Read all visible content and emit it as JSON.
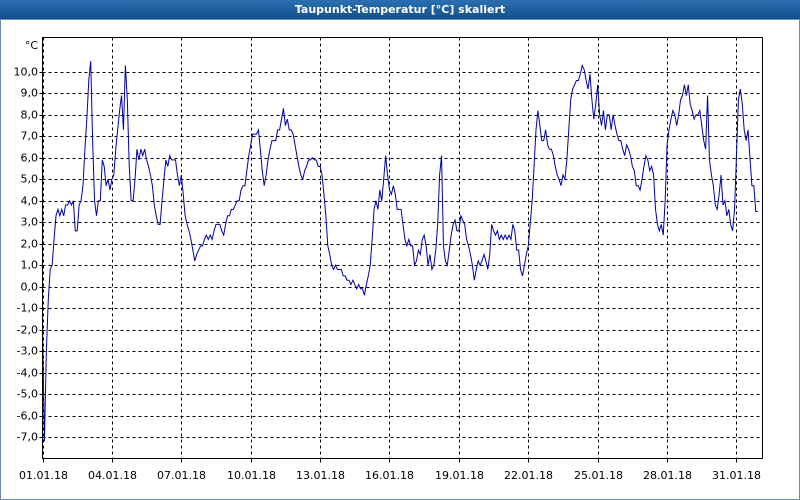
{
  "chart_data": {
    "type": "line",
    "title": "Taupunkt-Temperatur [°C] skaliert",
    "y_unit": "°C",
    "xlim": [
      0,
      747
    ],
    "ylim": [
      -8,
      11.6
    ],
    "grid": true,
    "xticks": [
      {
        "value": 0,
        "label": "01.01.18"
      },
      {
        "value": 72,
        "label": "04.01.18"
      },
      {
        "value": 144,
        "label": "07.01.18"
      },
      {
        "value": 216,
        "label": "10.01.18"
      },
      {
        "value": 288,
        "label": "13.01.18"
      },
      {
        "value": 360,
        "label": "16.01.18"
      },
      {
        "value": 432,
        "label": "19.01.18"
      },
      {
        "value": 504,
        "label": "22.01.18"
      },
      {
        "value": 576,
        "label": "25.01.18"
      },
      {
        "value": 648,
        "label": "28.01.18"
      },
      {
        "value": 720,
        "label": "31.01.18"
      }
    ],
    "yticks": [
      {
        "value": -7,
        "label": "-7,0"
      },
      {
        "value": -6,
        "label": "-6,0"
      },
      {
        "value": -5,
        "label": "-5,0"
      },
      {
        "value": -4,
        "label": "-4,0"
      },
      {
        "value": -3,
        "label": "-3,0"
      },
      {
        "value": -2,
        "label": "-2,0"
      },
      {
        "value": -1,
        "label": "-1,0"
      },
      {
        "value": 0,
        "label": "0,0"
      },
      {
        "value": 1,
        "label": "1,0"
      },
      {
        "value": 2,
        "label": "2,0"
      },
      {
        "value": 3,
        "label": "3,0"
      },
      {
        "value": 4,
        "label": "4,0"
      },
      {
        "value": 5,
        "label": "5,0"
      },
      {
        "value": 6,
        "label": "6,0"
      },
      {
        "value": 7,
        "label": "7,0"
      },
      {
        "value": 8,
        "label": "8,0"
      },
      {
        "value": 9,
        "label": "9,0"
      },
      {
        "value": 10,
        "label": "10,0"
      }
    ],
    "x": [
      0,
      2,
      4,
      6,
      8,
      10,
      12,
      14,
      16,
      18,
      20,
      22,
      24,
      26,
      28,
      30,
      32,
      34,
      36,
      38,
      40,
      42,
      44,
      46,
      48,
      50,
      52,
      54,
      56,
      58,
      60,
      62,
      64,
      66,
      68,
      70,
      72,
      74,
      76,
      78,
      80,
      82,
      84,
      86,
      88,
      90,
      92,
      94,
      96,
      98,
      100,
      102,
      104,
      106,
      108,
      110,
      112,
      114,
      116,
      118,
      120,
      122,
      124,
      126,
      128,
      130,
      132,
      134,
      136,
      138,
      140,
      142,
      144,
      146,
      148,
      150,
      152,
      154,
      156,
      158,
      160,
      162,
      164,
      166,
      168,
      170,
      172,
      174,
      176,
      178,
      180,
      182,
      184,
      186,
      188,
      190,
      192,
      194,
      196,
      198,
      200,
      202,
      204,
      206,
      208,
      210,
      212,
      214,
      216,
      218,
      220,
      222,
      224,
      226,
      228,
      230,
      232,
      234,
      236,
      238,
      240,
      242,
      244,
      246,
      248,
      250,
      252,
      254,
      256,
      258,
      260,
      262,
      264,
      266,
      268,
      270,
      272,
      274,
      276,
      278,
      280,
      282,
      284,
      286,
      288,
      290,
      292,
      294,
      296,
      298,
      300,
      302,
      304,
      306,
      308,
      310,
      312,
      314,
      316,
      318,
      320,
      322,
      324,
      326,
      328,
      330,
      332,
      334,
      336,
      338,
      340,
      342,
      344,
      346,
      348,
      350,
      352,
      354,
      356,
      358,
      360,
      362,
      364,
      366,
      368,
      370,
      372,
      374,
      376,
      378,
      380,
      382,
      384,
      386,
      388,
      390,
      392,
      394,
      396,
      398,
      400,
      402,
      404,
      406,
      408,
      410,
      412,
      414,
      416,
      418,
      420,
      422,
      424,
      426,
      428,
      430,
      432,
      434,
      436,
      438,
      440,
      442,
      444,
      446,
      448,
      450,
      452,
      454,
      456,
      458,
      460,
      462,
      464,
      466,
      468,
      470,
      472,
      474,
      476,
      478,
      480,
      482,
      484,
      486,
      488,
      490,
      492,
      494,
      496,
      498,
      500,
      502,
      504,
      506,
      508,
      510,
      512,
      514,
      516,
      518,
      520,
      522,
      524,
      526,
      528,
      530,
      532,
      534,
      536,
      538,
      540,
      542,
      544,
      546,
      548,
      550,
      552,
      554,
      556,
      558,
      560,
      562,
      564,
      566,
      568,
      570,
      572,
      574,
      576,
      578,
      580,
      582,
      584,
      586,
      588,
      590,
      592,
      594,
      596,
      598,
      600,
      602,
      604,
      606,
      608,
      610,
      612,
      614,
      616,
      618,
      620,
      622,
      624,
      626,
      628,
      630,
      632,
      634,
      636,
      638,
      640,
      642,
      644,
      646,
      648,
      650,
      652,
      654,
      656,
      658,
      660,
      662,
      664,
      666,
      668,
      670,
      672,
      674,
      676,
      678,
      680,
      682,
      684,
      686,
      688,
      690,
      692,
      694,
      696,
      698,
      700,
      702,
      704,
      706,
      708,
      710,
      712,
      714,
      716,
      718,
      720,
      722,
      724,
      726,
      728,
      730,
      732,
      734,
      736,
      738,
      740,
      742
    ],
    "series": [
      {
        "color": "#0000a8",
        "values": [
          -2.0,
          -7.2,
          -3.0,
          -0.6,
          0.8,
          1.0,
          2.2,
          3.3,
          3.6,
          3.3,
          3.6,
          3.3,
          3.8,
          3.8,
          4.0,
          3.8,
          4.0,
          2.6,
          2.6,
          3.8,
          4.0,
          4.7,
          6.4,
          7.8,
          9.6,
          10.5,
          6.8,
          4.0,
          3.3,
          4.0,
          4.0,
          5.9,
          5.6,
          4.7,
          5.0,
          4.5,
          5.0,
          5.2,
          6.4,
          7.3,
          8.2,
          8.9,
          7.3,
          10.3,
          8.7,
          5.6,
          4.0,
          4.0,
          5.0,
          6.4,
          5.9,
          6.4,
          6.1,
          6.4,
          5.9,
          5.6,
          5.2,
          4.7,
          3.8,
          3.3,
          2.9,
          2.9,
          4.0,
          5.0,
          5.9,
          5.6,
          6.1,
          5.9,
          5.9,
          5.9,
          5.2,
          4.7,
          5.2,
          4.3,
          3.3,
          2.9,
          2.6,
          2.2,
          1.7,
          1.2,
          1.5,
          1.7,
          1.9,
          1.9,
          2.2,
          2.4,
          2.2,
          2.4,
          2.2,
          2.6,
          2.9,
          2.9,
          2.9,
          2.6,
          2.4,
          2.9,
          3.3,
          3.3,
          3.6,
          3.6,
          3.8,
          4.0,
          4.0,
          4.5,
          4.7,
          4.7,
          5.4,
          6.1,
          6.6,
          7.1,
          7.1,
          7.1,
          7.3,
          6.4,
          5.4,
          4.7,
          5.2,
          5.9,
          6.4,
          6.8,
          6.8,
          6.8,
          7.3,
          7.3,
          7.8,
          8.3,
          7.5,
          7.8,
          7.3,
          7.3,
          7.1,
          6.6,
          6.1,
          5.6,
          5.2,
          5.0,
          5.4,
          5.6,
          5.9,
          5.9,
          6.0,
          5.9,
          5.9,
          5.6,
          5.6,
          5.2,
          4.3,
          3.3,
          1.9,
          1.5,
          1.0,
          0.8,
          1.0,
          0.8,
          0.8,
          0.8,
          0.5,
          0.5,
          0.3,
          0.3,
          0.1,
          0.3,
          0.1,
          -0.1,
          0.1,
          -0.1,
          -0.1,
          -0.4,
          0.1,
          0.5,
          1.0,
          2.2,
          3.6,
          4.0,
          3.6,
          4.5,
          4.0,
          5.0,
          6.1,
          5.2,
          4.5,
          4.3,
          4.7,
          4.3,
          3.6,
          3.6,
          3.6,
          2.9,
          2.2,
          1.9,
          2.2,
          1.9,
          1.9,
          1.0,
          1.2,
          1.7,
          1.5,
          2.2,
          2.4,
          1.9,
          1.0,
          1.5,
          0.8,
          1.0,
          1.7,
          2.9,
          5.2,
          6.1,
          1.9,
          1.2,
          1.0,
          1.7,
          2.4,
          2.9,
          3.1,
          2.6,
          2.6,
          3.3,
          3.1,
          2.9,
          2.2,
          1.9,
          1.5,
          1.0,
          0.3,
          0.8,
          1.2,
          1.0,
          1.2,
          1.5,
          1.2,
          0.8,
          1.5,
          2.9,
          2.6,
          2.4,
          2.6,
          2.2,
          2.4,
          2.2,
          2.4,
          2.2,
          2.4,
          2.2,
          2.9,
          2.6,
          1.7,
          1.7,
          0.8,
          0.5,
          1.0,
          1.5,
          1.9,
          2.9,
          4.0,
          5.6,
          7.3,
          8.2,
          7.5,
          6.8,
          6.8,
          7.3,
          6.6,
          6.4,
          6.4,
          6.1,
          5.6,
          5.2,
          5.0,
          4.7,
          5.2,
          5.0,
          5.9,
          7.3,
          8.7,
          9.2,
          9.4,
          9.6,
          9.6,
          9.9,
          10.3,
          10.1,
          9.6,
          9.2,
          9.9,
          8.7,
          7.8,
          8.5,
          9.4,
          8.0,
          7.5,
          8.2,
          7.3,
          8.0,
          8.0,
          7.3,
          8.0,
          7.5,
          7.1,
          6.8,
          6.8,
          6.4,
          6.1,
          6.6,
          6.4,
          6.1,
          5.6,
          5.4,
          4.7,
          4.7,
          4.5,
          5.0,
          5.6,
          6.1,
          5.9,
          5.4,
          5.6,
          5.2,
          3.6,
          2.9,
          2.6,
          2.9,
          2.4,
          4.0,
          6.6,
          7.3,
          7.8,
          8.2,
          8.0,
          7.5,
          8.0,
          8.7,
          8.9,
          9.4,
          8.9,
          9.4,
          8.5,
          8.2,
          7.8,
          8.0,
          8.0,
          8.2,
          7.5,
          6.8,
          6.4,
          8.9,
          5.9,
          5.2,
          4.7,
          3.8,
          3.6,
          4.3,
          5.2,
          3.8,
          4.0,
          3.3,
          3.6,
          2.9,
          2.6,
          3.6,
          6.1,
          8.7,
          9.2,
          8.5,
          7.3,
          6.8,
          7.3,
          6.0,
          4.7,
          4.7,
          3.5,
          3.5
        ]
      }
    ]
  }
}
